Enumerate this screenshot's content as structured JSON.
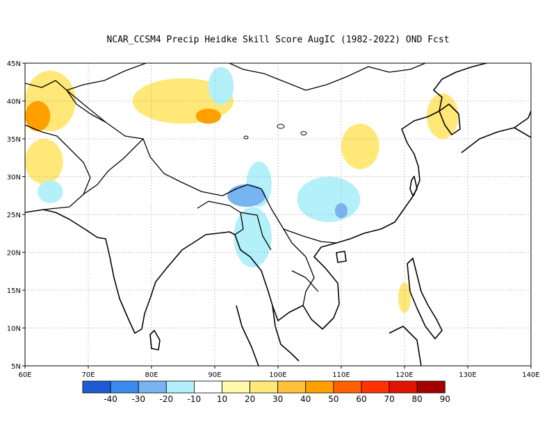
{
  "title": "NCAR_CCSM4 Precip Heidke Skill Score AugIC (1982-2022) OND Fcst",
  "chart_data": {
    "type": "heatmap",
    "title": "NCAR_CCSM4 Precip Heidke Skill Score AugIC (1982-2022) OND Fcst",
    "x_range": [
      60,
      140
    ],
    "y_range": [
      5,
      45
    ],
    "x_ticks": [
      "60E",
      "70E",
      "80E",
      "90E",
      "100E",
      "110E",
      "120E",
      "130E",
      "140E"
    ],
    "y_ticks": [
      "5N",
      "10N",
      "15N",
      "20N",
      "25N",
      "30N",
      "35N",
      "40N",
      "45N"
    ],
    "grid": true,
    "colorbar": {
      "colors": [
        "#1e5ad2",
        "#3c8cf0",
        "#78b4f0",
        "#b4f0fa",
        "#ffffff",
        "#fffaaa",
        "#ffe878",
        "#ffc03c",
        "#ffa000",
        "#ff6000",
        "#ff3200",
        "#e11400",
        "#a50000"
      ],
      "labels": [
        "-40",
        "-30",
        "-20",
        "-10",
        "10",
        "20",
        "30",
        "40",
        "50",
        "60",
        "70",
        "80",
        "90"
      ]
    },
    "regions": [
      {
        "lon": 64,
        "lat": 40,
        "rx": 4,
        "ry": 4,
        "value": 20
      },
      {
        "lon": 62,
        "lat": 38,
        "rx": 2,
        "ry": 2,
        "value": 40
      },
      {
        "lon": 63,
        "lat": 32,
        "rx": 3,
        "ry": 3,
        "value": 20
      },
      {
        "lon": 85,
        "lat": 40,
        "rx": 8,
        "ry": 3,
        "value": 20
      },
      {
        "lon": 89,
        "lat": 38,
        "rx": 2,
        "ry": 1,
        "value": 40
      },
      {
        "lon": 91,
        "lat": 42,
        "rx": 2,
        "ry": 2.5,
        "value": -10
      },
      {
        "lon": 97,
        "lat": 29,
        "rx": 2,
        "ry": 3,
        "value": -10
      },
      {
        "lon": 95,
        "lat": 27.5,
        "rx": 3,
        "ry": 1.5,
        "value": -20
      },
      {
        "lon": 96,
        "lat": 22,
        "rx": 3,
        "ry": 4,
        "value": -10
      },
      {
        "lon": 108,
        "lat": 27,
        "rx": 5,
        "ry": 3,
        "value": -10
      },
      {
        "lon": 110,
        "lat": 25.5,
        "rx": 1,
        "ry": 1,
        "value": -20
      },
      {
        "lon": 113,
        "lat": 34,
        "rx": 3,
        "ry": 3,
        "value": 20
      },
      {
        "lon": 126,
        "lat": 38,
        "rx": 2.5,
        "ry": 3,
        "value": 20
      },
      {
        "lon": 64,
        "lat": 28,
        "rx": 2,
        "ry": 1.5,
        "value": -10
      },
      {
        "lon": 120,
        "lat": 14,
        "rx": 1,
        "ry": 2,
        "value": 20
      }
    ]
  }
}
